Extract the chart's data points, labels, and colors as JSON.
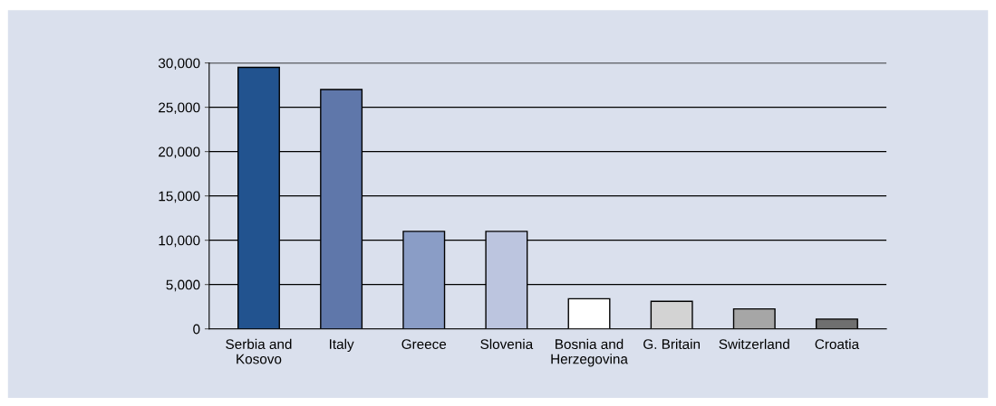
{
  "chart_data": {
    "type": "bar",
    "categories": [
      "Serbia and\nKosovo",
      "Italy",
      "Greece",
      "Slovenia",
      "Bosnia and\nHerzegovina",
      "G. Britain",
      "Switzerland",
      "Croatia"
    ],
    "values": [
      29500,
      27000,
      11000,
      11000,
      3400,
      3100,
      2250,
      1100
    ],
    "colors": [
      "#22538f",
      "#5f77aa",
      "#8a9dc6",
      "#bcc5df",
      "#ffffff",
      "#d3d3d3",
      "#a6a6a6",
      "#6f6f6f"
    ],
    "ylim": [
      0,
      30000
    ],
    "yticks": [
      0,
      {
        "value": 5000,
        "label": "5,000"
      },
      {
        "value": 10000,
        "label": "10,000"
      },
      {
        "value": 15000,
        "label": "15,000"
      },
      {
        "value": 20000,
        "label": "20,000"
      },
      {
        "value": 25000,
        "label": "25,000"
      },
      {
        "value": 30000,
        "label": "30,000"
      }
    ],
    "grid": "y",
    "legend": false
  }
}
